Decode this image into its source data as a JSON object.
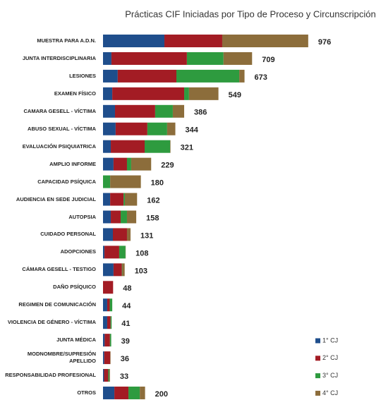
{
  "chart_data": {
    "type": "stacked-bar-horizontal",
    "title": "Prácticas CIF Iniciadas por Tipo de Proceso y Circunscripción",
    "categories": [
      "MUESTRA PARA A.D.N.",
      "JUNTA INTERDISCIPLINARIA",
      "LESIONES",
      "EXAMEN FÍSICO",
      "CAMARA GESELL - VÍCTIMA",
      "ABUSO SEXUAL - VÍCTIMA",
      "EVALUACIÓN PSIQUIATRICA",
      "AMPLIO INFORME",
      "CAPACIDAD PSÍQUICA",
      "AUDIENCIA EN SEDE JUDICIAL",
      "AUTOPSIA",
      "CUIDADO PERSONAL",
      "ADOPCIONES",
      "CÁMARA GESELL - TESTIGO",
      "DAÑO PSÍQUICO",
      "REGIMEN DE COMUNICACIÓN",
      "VIOLENCIA DE GÉNERO - VÍCTIMA",
      "JUNTA MÉDICA",
      "MODNOMBRE/SUPRESIÓN\nAPELLIDO",
      "RESPONSABILIDAD PROFESIONAL",
      "OTROS"
    ],
    "series": [
      {
        "name": "1° CJ",
        "color": "#1f4e8c",
        "values": [
          292,
          40,
          70,
          44,
          57,
          60,
          37,
          50,
          0,
          34,
          37,
          47,
          7,
          50,
          0,
          20,
          20,
          8,
          6,
          5,
          54
        ]
      },
      {
        "name": "2° CJ",
        "color": "#a31c24",
        "values": [
          275,
          359,
          279,
          342,
          191,
          151,
          161,
          64,
          0,
          64,
          47,
          67,
          70,
          40,
          48,
          12,
          16,
          25,
          28,
          20,
          67
        ]
      },
      {
        "name": "3° CJ",
        "color": "#2e9b3f",
        "values": [
          0,
          174,
          299,
          23,
          84,
          94,
          121,
          20,
          34,
          6,
          30,
          0,
          30,
          2,
          0,
          12,
          5,
          6,
          0,
          5,
          54
        ]
      },
      {
        "name": "4° CJ",
        "color": "#8c6d3b",
        "values": [
          409,
          136,
          25,
          140,
          54,
          39,
          2,
          95,
          146,
          58,
          44,
          17,
          1,
          11,
          0,
          0,
          0,
          0,
          2,
          3,
          25
        ]
      }
    ],
    "totals": [
      976,
      709,
      673,
      549,
      386,
      344,
      321,
      229,
      180,
      162,
      158,
      131,
      108,
      103,
      48,
      44,
      41,
      39,
      36,
      33,
      200
    ],
    "xlim": [
      0,
      1000
    ]
  }
}
